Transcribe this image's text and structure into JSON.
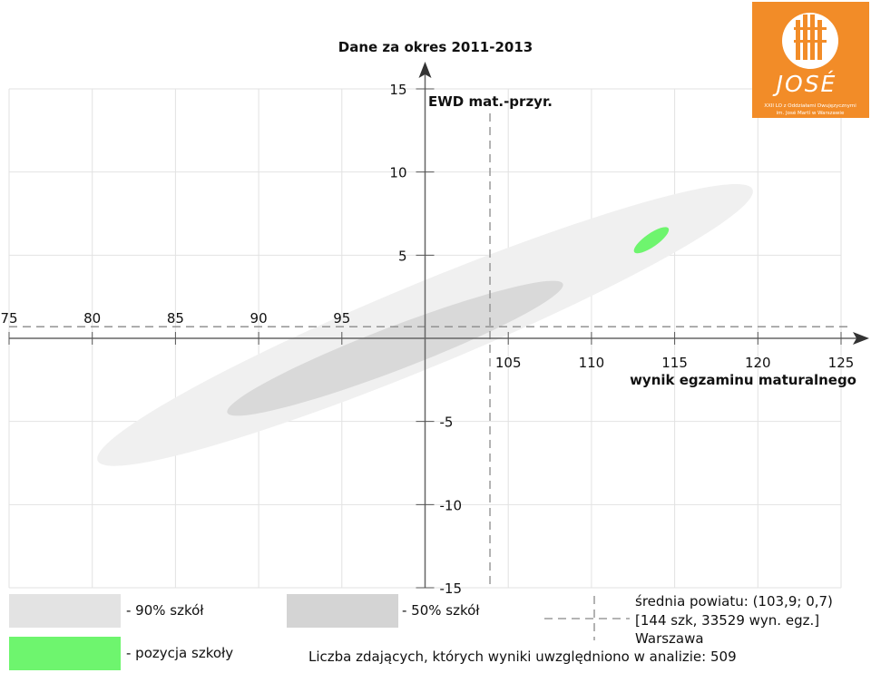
{
  "chart_data": {
    "type": "scatter",
    "title": "Dane za okres 2011-2013",
    "xlabel": "wynik egzaminu maturalnego",
    "ylabel": "EWD mat.-przyr.",
    "xlim": [
      75,
      125
    ],
    "ylim": [
      -15,
      15
    ],
    "x_ticks": [
      75,
      80,
      85,
      90,
      95,
      105,
      110,
      115,
      120,
      125
    ],
    "y_ticks": [
      15,
      10,
      5,
      -5,
      -10,
      -15
    ],
    "grid": true,
    "mean": {
      "x": 103.9,
      "y": 0.7
    },
    "regions": [
      {
        "name": "90% szkół",
        "cx": 100.0,
        "cy": 0.8,
        "rx": 21.3,
        "ry": 2.5,
        "angle_deg": -22.5,
        "color": "#f0f0f0"
      },
      {
        "name": "50% szkół",
        "cx": 98.2,
        "cy": -0.6,
        "rx": 10.8,
        "ry": 1.3,
        "angle_deg": -21,
        "color": "#d9d9d9"
      },
      {
        "name": "pozycja szkoły",
        "cx": 113.6,
        "cy": 5.9,
        "rx": 1.25,
        "ry": 0.4,
        "angle_deg": -35,
        "color": "#6ef56e"
      }
    ],
    "legend": {
      "p90": "- 90% szkół",
      "p50": "- 50% szkół",
      "school": "- pozycja szkoły",
      "mean_line1": "średnia powiatu: (103,9; 0,7)",
      "mean_line2": "[144 szk, 33529 wyn. egz.]",
      "mean_line3": "Warszawa",
      "count": "Liczba zdających, których wyniki uwzględniono w analizie: 509"
    }
  },
  "logo": {
    "name": "JOSÉ",
    "line1": "XXII LO z Oddziałami Dwujęzycznymi",
    "line2": "im. José Martí w Warszawie",
    "color": "#f28c28"
  }
}
